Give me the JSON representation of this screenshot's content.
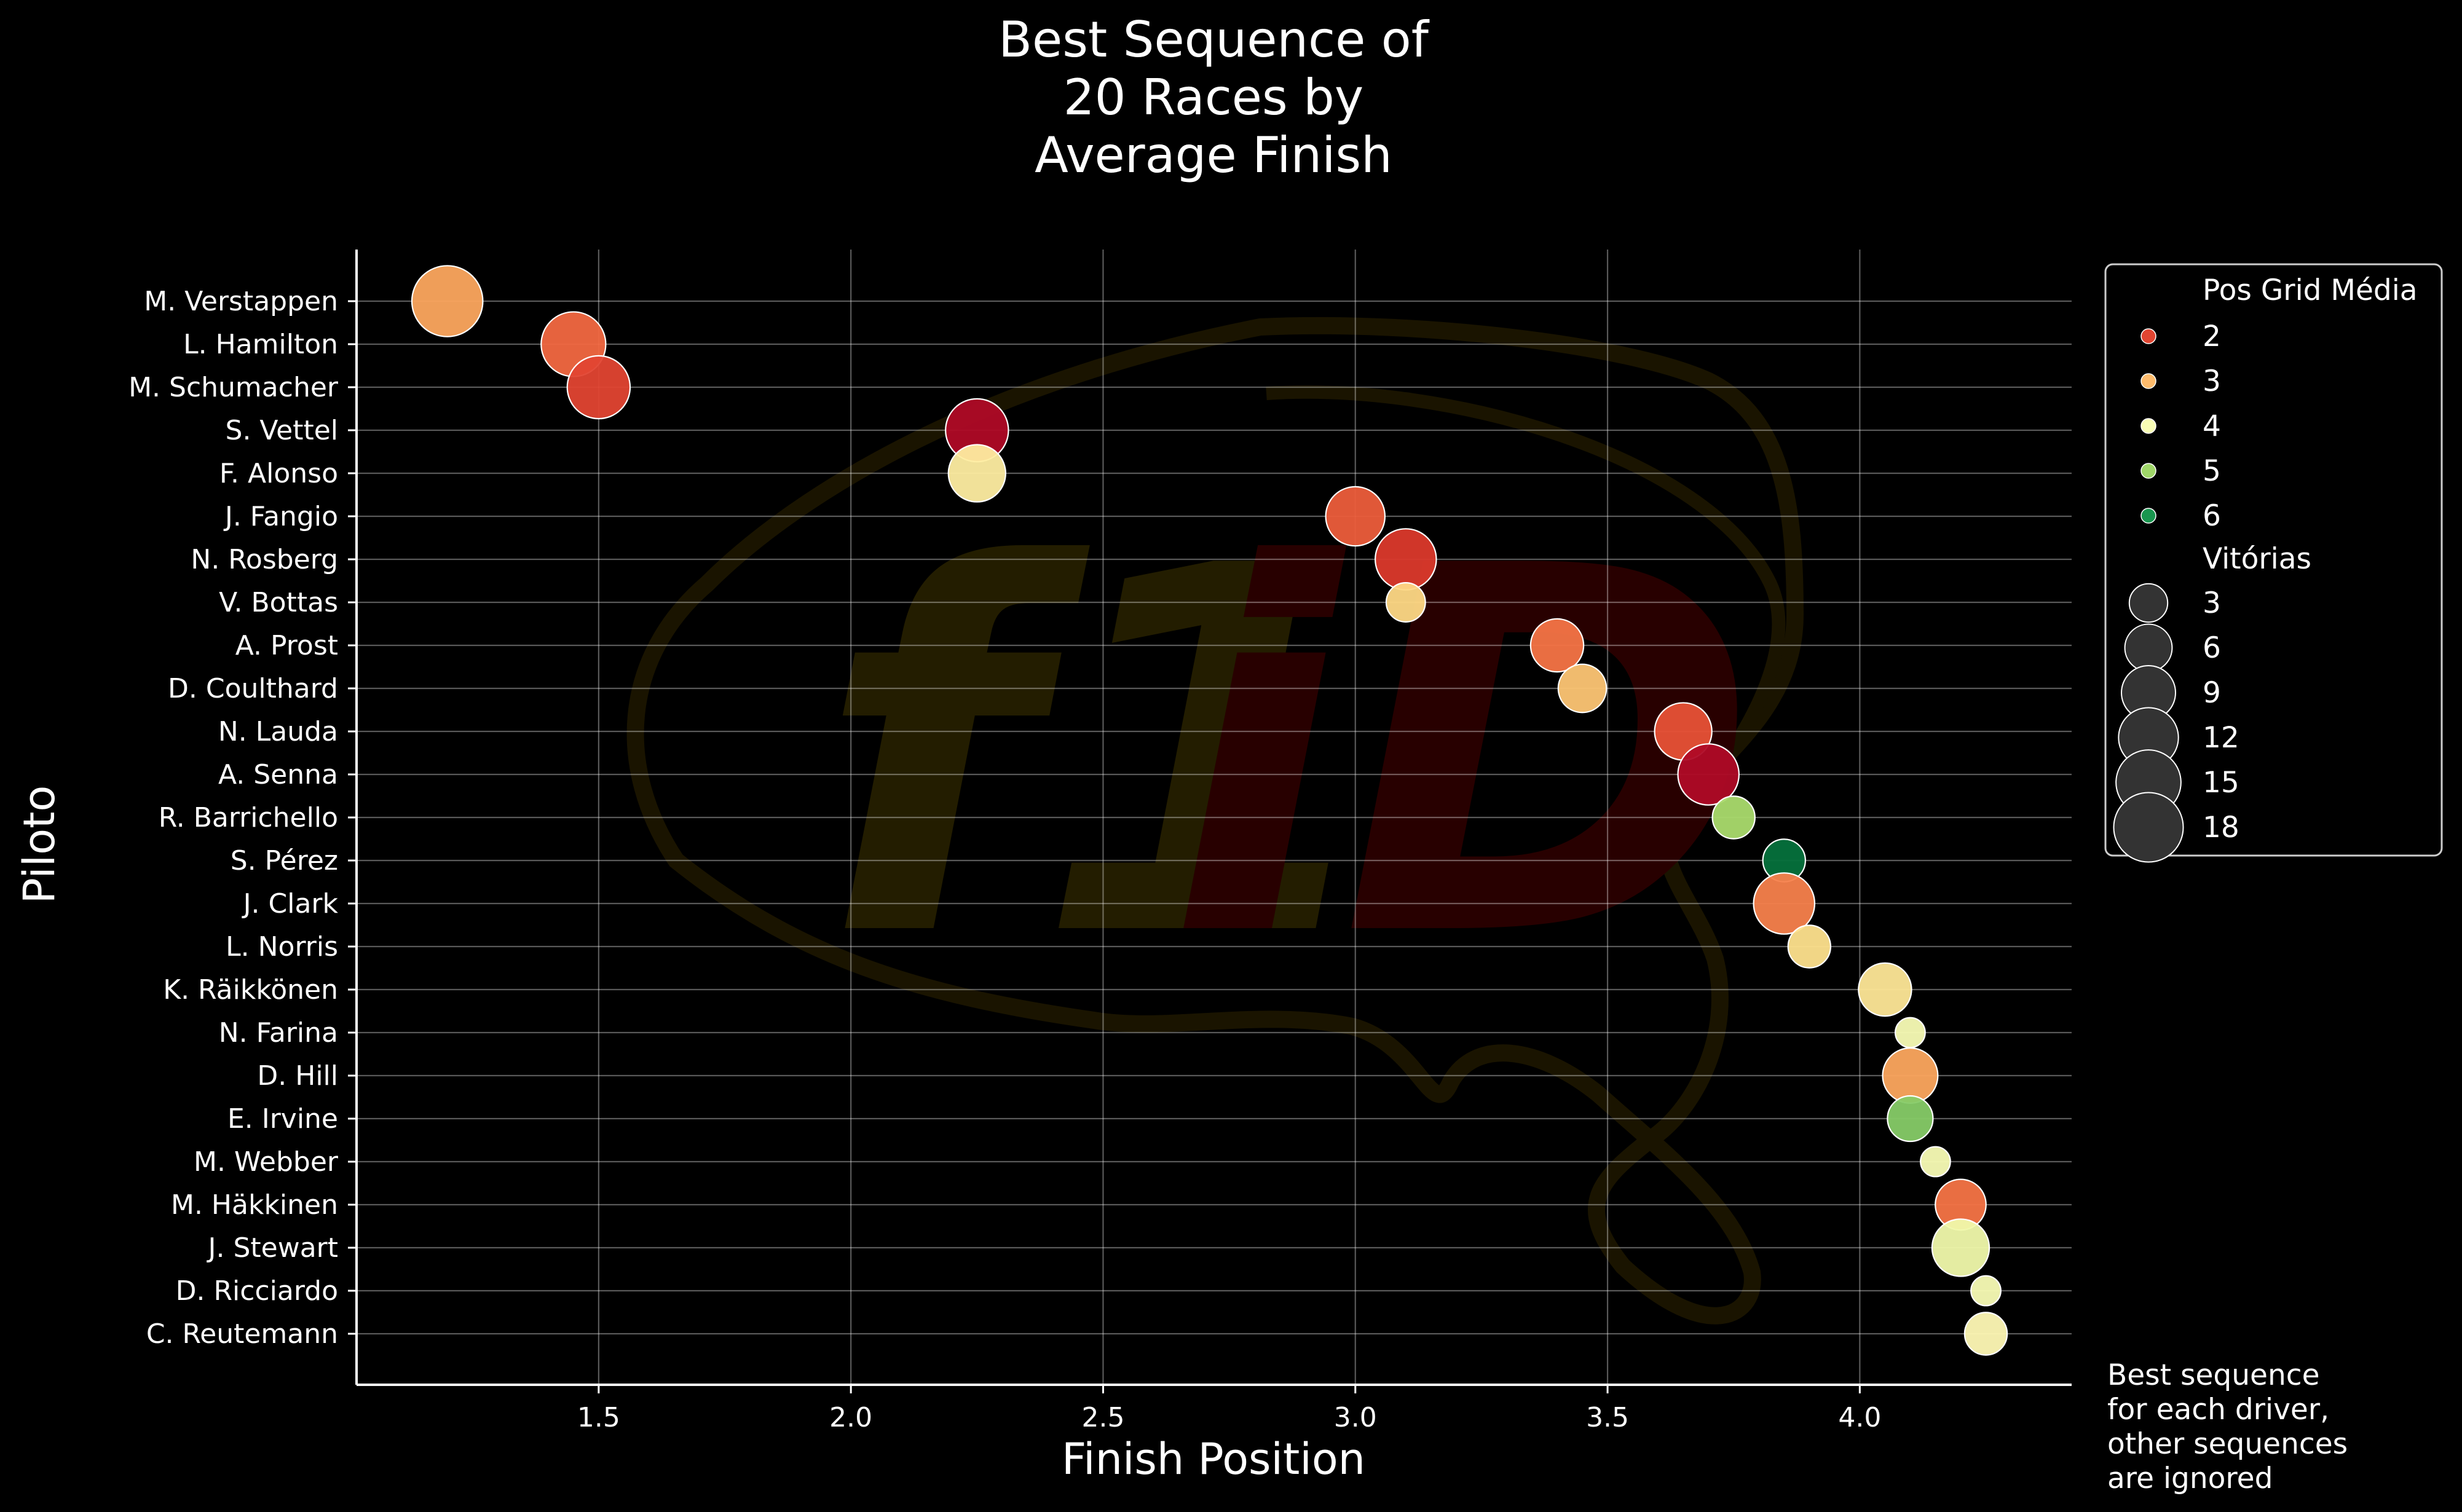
{
  "chart_data": {
    "type": "scatter",
    "title": [
      "Best Sequence of",
      "20 Races by",
      "Average Finish"
    ],
    "xlabel": "Finish Position",
    "ylabel": "Piloto",
    "xlim": [
      1.02,
      4.42
    ],
    "xticks": [
      1.5,
      2.0,
      2.5,
      3.0,
      3.5,
      4.0
    ],
    "xtick_labels": [
      "1.5",
      "2.0",
      "2.5",
      "3.0",
      "3.5",
      "4.0"
    ],
    "grid": true,
    "legend_position": "outside-right",
    "annotation": [
      "Best sequence",
      "for each driver,",
      "other sequences",
      "are ignored"
    ],
    "color_scale": {
      "name": "RdYlGn",
      "min": 1.3,
      "max": 6.5,
      "stops": [
        "#a50026",
        "#d73027",
        "#f46d43",
        "#fdae61",
        "#fee08b",
        "#ffffbf",
        "#d9ef8b",
        "#a6d96a",
        "#66bd63",
        "#1a9850",
        "#006837"
      ]
    },
    "legend": {
      "color_title": "Pos Grid Média",
      "color_entries": [
        {
          "label": "2",
          "value": 2
        },
        {
          "label": "3",
          "value": 3
        },
        {
          "label": "4",
          "value": 4
        },
        {
          "label": "5",
          "value": 5
        },
        {
          "label": "6",
          "value": 6
        }
      ],
      "size_title": "Vitórias",
      "size_entries": [
        {
          "label": "3",
          "value": 3
        },
        {
          "label": "6",
          "value": 6
        },
        {
          "label": "9",
          "value": 9
        },
        {
          "label": "12",
          "value": 12
        },
        {
          "label": "15",
          "value": 15
        },
        {
          "label": "18",
          "value": 18
        }
      ]
    },
    "points": [
      {
        "driver": "M. Verstappen",
        "finish": 1.2,
        "grid": 2.8,
        "wins": 18
      },
      {
        "driver": "L. Hamilton",
        "finish": 1.45,
        "grid": 2.3,
        "wins": 14
      },
      {
        "driver": "M. Schumacher",
        "finish": 1.5,
        "grid": 2.0,
        "wins": 13
      },
      {
        "driver": "S. Vettel",
        "finish": 2.25,
        "grid": 1.4,
        "wins": 13
      },
      {
        "driver": "F. Alonso",
        "finish": 2.25,
        "grid": 3.6,
        "wins": 10
      },
      {
        "driver": "J. Fangio",
        "finish": 3.0,
        "grid": 2.2,
        "wins": 11
      },
      {
        "driver": "N. Rosberg",
        "finish": 3.1,
        "grid": 1.9,
        "wins": 12
      },
      {
        "driver": "V. Bottas",
        "finish": 3.1,
        "grid": 3.3,
        "wins": 3
      },
      {
        "driver": "A. Prost",
        "finish": 3.4,
        "grid": 2.4,
        "wins": 8
      },
      {
        "driver": "D. Coulthard",
        "finish": 3.45,
        "grid": 3.1,
        "wins": 6
      },
      {
        "driver": "N. Lauda",
        "finish": 3.65,
        "grid": 2.1,
        "wins": 10
      },
      {
        "driver": "A. Senna",
        "finish": 3.7,
        "grid": 1.4,
        "wins": 12
      },
      {
        "driver": "R. Barrichello",
        "finish": 3.75,
        "grid": 4.9,
        "wins": 4
      },
      {
        "driver": "S. Pérez",
        "finish": 3.85,
        "grid": 6.4,
        "wins": 4
      },
      {
        "driver": "J. Clark",
        "finish": 3.85,
        "grid": 2.5,
        "wins": 12
      },
      {
        "driver": "L. Norris",
        "finish": 3.9,
        "grid": 3.4,
        "wins": 4
      },
      {
        "driver": "K. Räikkönen",
        "finish": 4.05,
        "grid": 3.5,
        "wins": 8
      },
      {
        "driver": "N. Farina",
        "finish": 4.1,
        "grid": 4.0,
        "wins": 1
      },
      {
        "driver": "D. Hill",
        "finish": 4.1,
        "grid": 2.8,
        "wins": 9
      },
      {
        "driver": "E. Irvine",
        "finish": 4.1,
        "grid": 5.2,
        "wins": 5
      },
      {
        "driver": "M. Webber",
        "finish": 4.15,
        "grid": 4.0,
        "wins": 1
      },
      {
        "driver": "M. Häkkinen",
        "finish": 4.2,
        "grid": 2.4,
        "wins": 7
      },
      {
        "driver": "J. Stewart",
        "finish": 4.2,
        "grid": 4.1,
        "wins": 10
      },
      {
        "driver": "D. Ricciardo",
        "finish": 4.25,
        "grid": 4.0,
        "wins": 1
      },
      {
        "driver": "C. Reutemann",
        "finish": 4.25,
        "grid": 3.8,
        "wins": 4
      }
    ]
  }
}
